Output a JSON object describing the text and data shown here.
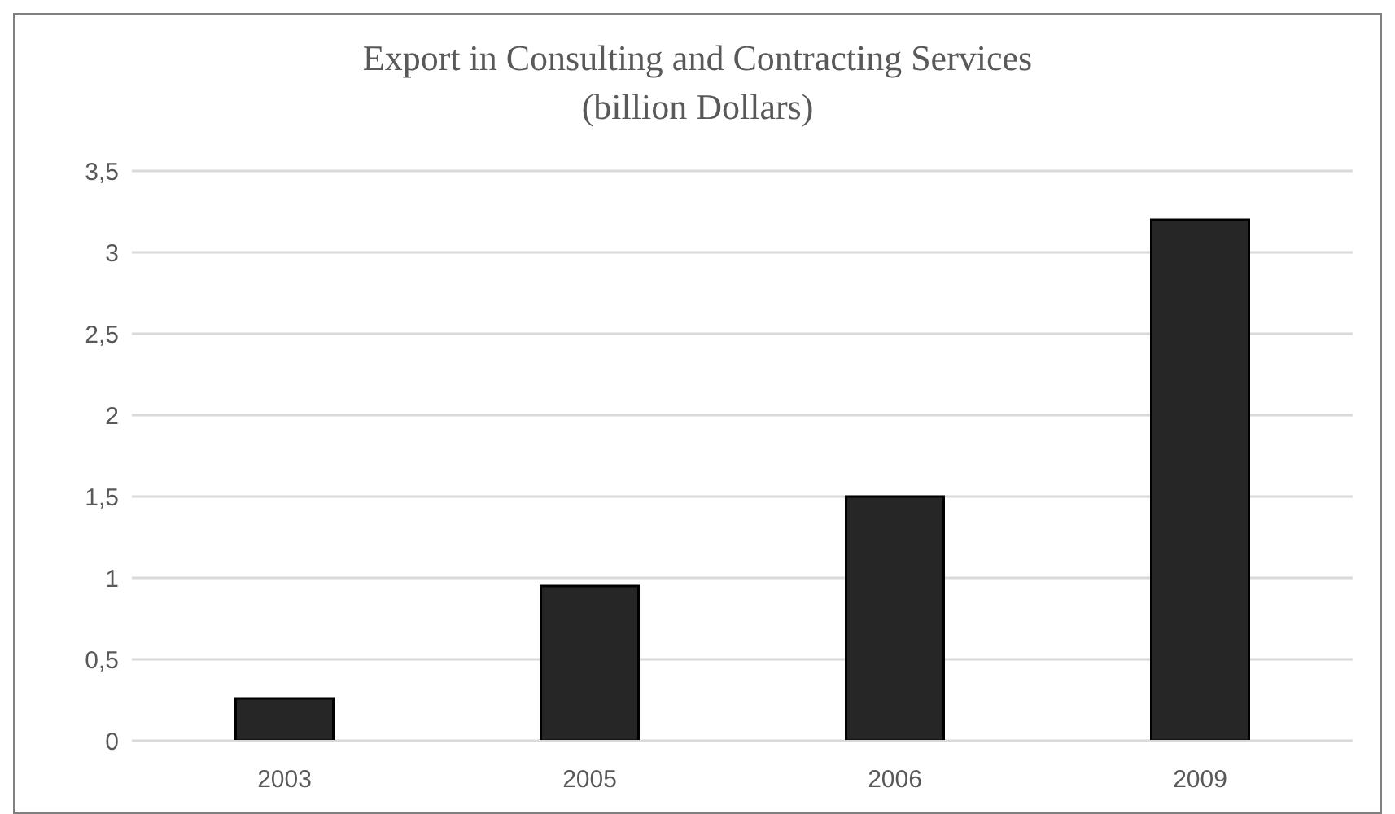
{
  "chart_data": {
    "type": "bar",
    "title": "Export in Consulting and Contracting Services",
    "subtitle": "(billion Dollars)",
    "categories": [
      "2003",
      "2005",
      "2006",
      "2009"
    ],
    "values": [
      0.26,
      0.95,
      1.5,
      3.2
    ],
    "color": "#262626",
    "ylim": [
      0,
      3.5
    ],
    "yticks": [
      0,
      {
        "value": 0.5,
        "label": "0,5"
      },
      1,
      {
        "value": 1.5,
        "label": "1,5"
      },
      2,
      {
        "value": 2.5,
        "label": "2,5"
      },
      3,
      {
        "value": 3.5,
        "label": "3,5"
      }
    ],
    "grid": "y"
  }
}
